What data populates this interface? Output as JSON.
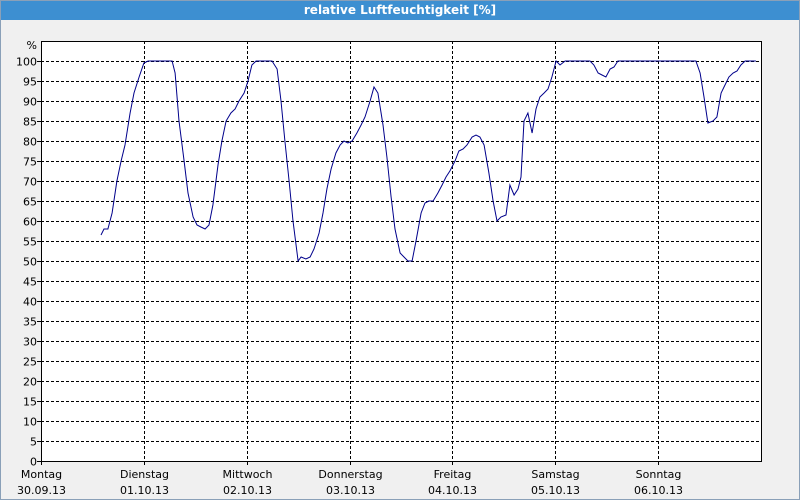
{
  "chart_data": {
    "type": "line",
    "title": "relative Luftfeuchtigkeit [%]",
    "y_label": "%",
    "color": "#00008b",
    "grid": true,
    "xlim": [
      0,
      168
    ],
    "ylim": [
      0,
      105
    ],
    "yticks": [
      0,
      5,
      10,
      15,
      20,
      25,
      30,
      35,
      40,
      45,
      50,
      55,
      60,
      65,
      70,
      75,
      80,
      85,
      90,
      95,
      100
    ],
    "xticks": [
      {
        "value": 0,
        "label": "Montag",
        "sublabel": "30.09.13"
      },
      {
        "value": 24,
        "label": "Dienstag",
        "sublabel": "01.10.13"
      },
      {
        "value": 48,
        "label": "Mittwoch",
        "sublabel": "02.10.13"
      },
      {
        "value": 72,
        "label": "Donnerstag",
        "sublabel": "03.10.13"
      },
      {
        "value": 96,
        "label": "Freitag",
        "sublabel": "04.10.13"
      },
      {
        "value": 120,
        "label": "Samstag",
        "sublabel": "05.10.13"
      },
      {
        "value": 144,
        "label": "Sonntag",
        "sublabel": "06.10.13"
      }
    ],
    "x": [
      14,
      14.7,
      15.6,
      16.6,
      17.7,
      18.7,
      19.6,
      20.8,
      21.7,
      22.9,
      24,
      25,
      30.6,
      31.3,
      32.2,
      33.4,
      34.3,
      35.5,
      36.4,
      37.3,
      38.3,
      39.2,
      40.1,
      41.3,
      42.2,
      43.2,
      44.3,
      45.3,
      46.2,
      47.4,
      48.3,
      49.2,
      50.2,
      53.9,
      55.1,
      56,
      56.9,
      57.9,
      58.8,
      60,
      60.7,
      61.8,
      62.8,
      63.7,
      64.9,
      65.8,
      66.7,
      67.7,
      68.8,
      69.8,
      70.7,
      71.6,
      72.6,
      73.7,
      74.7,
      75.6,
      76.8,
      77.7,
      78.6,
      79.8,
      80.7,
      81.7,
      82.6,
      83.8,
      84.7,
      85.6,
      86.6,
      87.5,
      88.7,
      89.6,
      90.5,
      91.5,
      92.6,
      93.6,
      94.5,
      95.4,
      96.6,
      97.5,
      98.5,
      99.4,
      100.6,
      101.5,
      102.4,
      103.4,
      104.5,
      105.5,
      106.4,
      107.3,
      108.5,
      109.4,
      110.4,
      111.3,
      112,
      112.7,
      113.6,
      114.6,
      115.5,
      116.4,
      117.4,
      118.3,
      119.2,
      120.2,
      121.1,
      122.3,
      128.1,
      129,
      130,
      130.9,
      131.8,
      132.8,
      133.7,
      134.6,
      152.8,
      153.8,
      154.7,
      155.6,
      156.8,
      157.7,
      158.7,
      159.6,
      160.5,
      161.5,
      162.4,
      163.3,
      164.3,
      166.8
    ],
    "values": [
      56.5,
      58,
      58,
      62,
      70,
      75,
      79,
      87,
      92,
      96,
      99.5,
      100,
      100,
      97,
      85,
      75,
      67,
      61,
      59,
      58.5,
      58,
      59,
      64,
      74,
      80,
      85,
      87,
      88,
      90,
      92,
      95,
      99,
      100,
      100,
      98,
      90,
      80,
      70,
      60,
      50,
      51,
      50.5,
      51,
      53,
      57,
      62,
      68,
      73,
      77,
      79,
      80,
      79.5,
      80,
      82,
      84,
      86,
      90,
      93.5,
      92,
      84,
      76,
      66,
      58,
      52,
      51,
      50,
      50,
      55,
      62,
      64.5,
      65,
      65,
      67,
      69,
      71,
      72.5,
      75,
      77.5,
      78,
      79,
      81,
      81.5,
      81,
      79,
      72,
      65,
      60,
      61,
      61.5,
      69,
      66.5,
      68,
      71,
      85,
      87,
      82,
      88,
      91,
      92,
      93,
      96,
      100,
      99,
      100,
      100,
      99,
      97,
      96.5,
      96,
      98,
      98.5,
      100,
      100,
      97,
      91,
      84.5,
      85,
      86,
      92,
      94,
      96,
      97,
      97.5,
      99,
      100,
      100
    ]
  }
}
